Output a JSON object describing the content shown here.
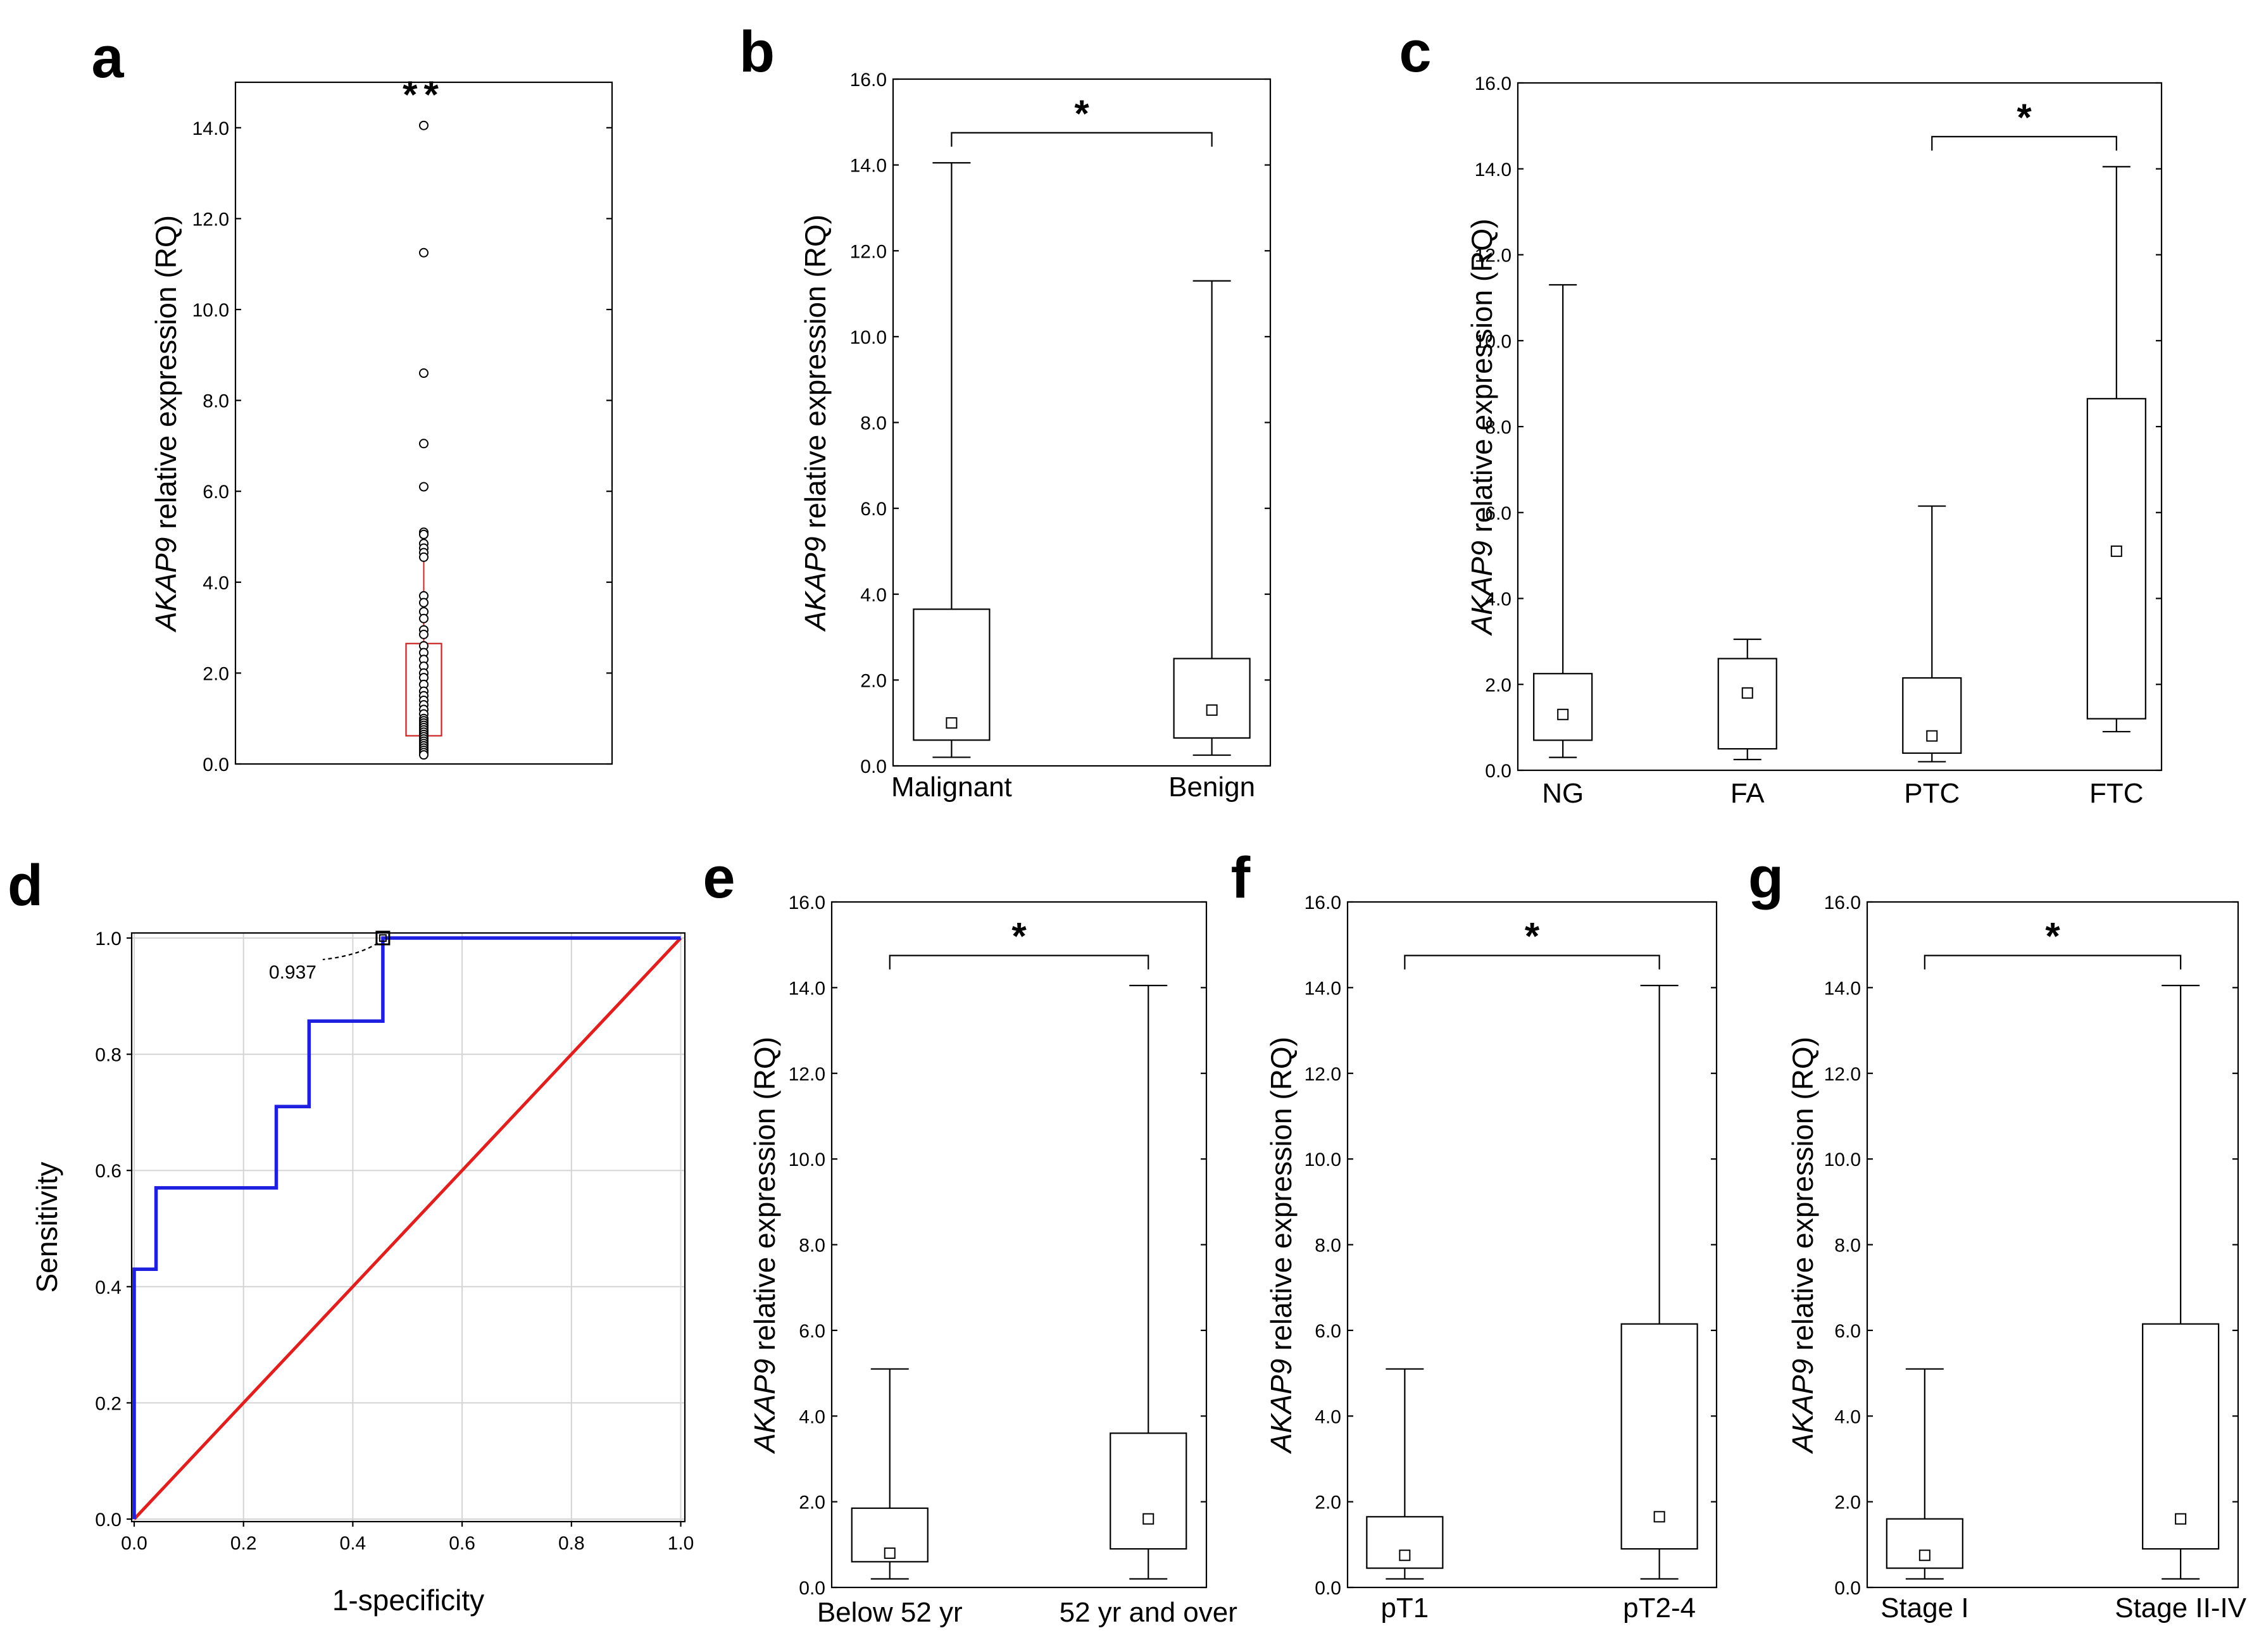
{
  "panels": {
    "a": {
      "letter": "a",
      "type": "dot-box",
      "ylabel_italic": "AKAP9",
      "ylabel_rest": " relative expression (RQ)",
      "yticks": [
        "0.0",
        "2.0",
        "4.0",
        "6.0",
        "8.0",
        "10.0",
        "12.0",
        "14.0"
      ],
      "ylim": [
        0,
        15
      ],
      "significance": "**",
      "box": {
        "q1": 0.62,
        "q3": 2.65,
        "whisker_low": 0.2,
        "whisker_high": 5.1,
        "color": "#cc2222"
      },
      "points": [
        14.05,
        11.25,
        8.6,
        7.05,
        6.1,
        5.1,
        5.05,
        4.85,
        4.75,
        4.65,
        4.55,
        3.7,
        3.55,
        3.35,
        3.2,
        2.95,
        2.85,
        2.6,
        2.45,
        2.3,
        2.15,
        2.0,
        1.9,
        1.75,
        1.6,
        1.5,
        1.4,
        1.3,
        1.2,
        1.1,
        1.0,
        0.95,
        0.9,
        0.85,
        0.8,
        0.75,
        0.7,
        0.65,
        0.6,
        0.55,
        0.5,
        0.45,
        0.4,
        0.35,
        0.3,
        0.25,
        0.2
      ]
    },
    "b": {
      "letter": "b",
      "type": "box",
      "ylabel_italic": "AKAP9",
      "ylabel_rest": " relative expression (RQ)",
      "yticks": [
        "0.0",
        "2.0",
        "4.0",
        "6.0",
        "8.0",
        "10.0",
        "12.0",
        "14.0",
        "16.0"
      ],
      "ylim": [
        0,
        16
      ],
      "significance": "*",
      "categories": [
        "Malignant",
        "Benign"
      ],
      "boxes": [
        {
          "min": 0.2,
          "q1": 0.6,
          "median": 1.0,
          "q3": 3.65,
          "max": 14.05
        },
        {
          "min": 0.25,
          "q1": 0.65,
          "median": 1.3,
          "q3": 2.5,
          "max": 11.3
        }
      ]
    },
    "c": {
      "letter": "c",
      "type": "box",
      "ylabel_italic": "AKAP9",
      "ylabel_rest": " relative expression (RQ)",
      "yticks": [
        "0.0",
        "2.0",
        "4.0",
        "6.0",
        "8.0",
        "10.0",
        "12.0",
        "14.0",
        "16.0"
      ],
      "ylim": [
        0,
        16
      ],
      "significance": "*",
      "categories": [
        "NG",
        "FA",
        "PTC",
        "FTC"
      ],
      "boxes": [
        {
          "min": 0.3,
          "q1": 0.7,
          "median": 1.3,
          "q3": 2.25,
          "max": 11.3
        },
        {
          "min": 0.25,
          "q1": 0.5,
          "median": 1.8,
          "q3": 2.6,
          "max": 3.05
        },
        {
          "min": 0.2,
          "q1": 0.4,
          "median": 0.8,
          "q3": 2.15,
          "max": 6.15
        },
        {
          "min": 0.9,
          "q1": 1.2,
          "median": 5.1,
          "q3": 8.65,
          "max": 14.05
        }
      ]
    },
    "d": {
      "letter": "d",
      "type": "roc",
      "xlabel": "1-specificity",
      "ylabel": "Sensitivity",
      "xticks": [
        "0.0",
        "0.2",
        "0.4",
        "0.6",
        "0.8",
        "1.0"
      ],
      "yticks": [
        "0.0",
        "0.2",
        "0.4",
        "0.6",
        "0.8",
        "1.0"
      ],
      "annotation": "0.937",
      "roc_color": "#1f1fe0",
      "diag_color": "#e01f1f",
      "roc_points": [
        [
          0,
          0
        ],
        [
          0,
          0.43
        ],
        [
          0.04,
          0.43
        ],
        [
          0.04,
          0.57
        ],
        [
          0.26,
          0.57
        ],
        [
          0.26,
          0.71
        ],
        [
          0.32,
          0.71
        ],
        [
          0.32,
          0.857
        ],
        [
          0.455,
          0.857
        ],
        [
          0.455,
          1.0
        ],
        [
          1.0,
          1.0
        ]
      ],
      "cutoff_point": [
        0.455,
        1.0
      ]
    },
    "e": {
      "letter": "e",
      "type": "box",
      "ylabel_italic": "AKAP9",
      "ylabel_rest": " relative expression (RQ)",
      "yticks": [
        "0.0",
        "2.0",
        "4.0",
        "6.0",
        "8.0",
        "10.0",
        "12.0",
        "14.0",
        "16.0"
      ],
      "ylim": [
        0,
        16
      ],
      "significance": "*",
      "categories": [
        "Below 52 yr",
        "52 yr and over"
      ],
      "boxes": [
        {
          "min": 0.2,
          "q1": 0.6,
          "median": 0.8,
          "q3": 1.85,
          "max": 5.1
        },
        {
          "min": 0.2,
          "q1": 0.9,
          "median": 1.6,
          "q3": 3.6,
          "max": 14.05
        }
      ]
    },
    "f": {
      "letter": "f",
      "type": "box",
      "ylabel_italic": "AKAP9",
      "ylabel_rest": " relative expression (RQ)",
      "yticks": [
        "0.0",
        "2.0",
        "4.0",
        "6.0",
        "8.0",
        "10.0",
        "12.0",
        "14.0",
        "16.0"
      ],
      "ylim": [
        0,
        16
      ],
      "significance": "*",
      "categories": [
        "pT1",
        "pT2-4"
      ],
      "boxes": [
        {
          "min": 0.2,
          "q1": 0.45,
          "median": 0.75,
          "q3": 1.65,
          "max": 5.1
        },
        {
          "min": 0.2,
          "q1": 0.9,
          "median": 1.65,
          "q3": 6.15,
          "max": 14.05
        }
      ]
    },
    "g": {
      "letter": "g",
      "type": "box",
      "ylabel_italic": "AKAP9",
      "ylabel_rest": " relative expression (RQ)",
      "yticks": [
        "0.0",
        "2.0",
        "4.0",
        "6.0",
        "8.0",
        "10.0",
        "12.0",
        "14.0",
        "16.0"
      ],
      "ylim": [
        0,
        16
      ],
      "significance": "*",
      "categories": [
        "Stage I",
        "Stage II-IV"
      ],
      "boxes": [
        {
          "min": 0.2,
          "q1": 0.45,
          "median": 0.75,
          "q3": 1.6,
          "max": 5.1
        },
        {
          "min": 0.2,
          "q1": 0.9,
          "median": 1.6,
          "q3": 6.15,
          "max": 14.05
        }
      ]
    }
  },
  "chart_data": [
    {
      "panel": "a",
      "type": "scatter",
      "ylabel": "AKAP9 relative expression (RQ)",
      "ylim": [
        0,
        15
      ],
      "yticks": [
        "0.0",
        "2.0",
        "4.0",
        "6.0",
        "8.0",
        "10.0",
        "12.0",
        "14.0"
      ],
      "significance": "**",
      "values": [
        14.05,
        11.25,
        8.6,
        7.05,
        6.1,
        5.1,
        5.05,
        4.85,
        4.75,
        4.65,
        4.55,
        3.7,
        3.55,
        3.35,
        3.2,
        2.95,
        2.85,
        2.6,
        2.45,
        2.3,
        2.15,
        2.0,
        1.9,
        1.75,
        1.6,
        1.5,
        1.4,
        1.3,
        1.2,
        1.1,
        1.0,
        0.95,
        0.9,
        0.85,
        0.8,
        0.75,
        0.7,
        0.65,
        0.6,
        0.55,
        0.5,
        0.45,
        0.4,
        0.35,
        0.3,
        0.25,
        0.2
      ]
    },
    {
      "panel": "b",
      "type": "box",
      "ylabel": "AKAP9 relative expression (RQ)",
      "ylim": [
        0,
        16
      ],
      "categories": [
        "Malignant",
        "Benign"
      ],
      "series": [
        {
          "values": [
            [
              0.2,
              0.6,
              1.0,
              3.65,
              14.05
            ],
            [
              0.25,
              0.65,
              1.3,
              2.5,
              11.3
            ]
          ]
        }
      ],
      "significance": "*"
    },
    {
      "panel": "c",
      "type": "box",
      "ylabel": "AKAP9 relative expression (RQ)",
      "ylim": [
        0,
        16
      ],
      "categories": [
        "NG",
        "FA",
        "PTC",
        "FTC"
      ],
      "series": [
        {
          "values": [
            [
              0.3,
              0.7,
              1.3,
              2.25,
              11.3
            ],
            [
              0.25,
              0.5,
              1.8,
              2.6,
              3.05
            ],
            [
              0.2,
              0.4,
              0.8,
              2.15,
              6.15
            ],
            [
              0.9,
              1.2,
              5.1,
              8.65,
              14.05
            ]
          ]
        }
      ],
      "significance": "*"
    },
    {
      "panel": "d",
      "type": "line",
      "xlabel": "1-specificity",
      "ylabel": "Sensitivity",
      "xlim": [
        0,
        1
      ],
      "ylim": [
        0,
        1
      ],
      "series": [
        {
          "x": [
            0,
            0,
            0.04,
            0.04,
            0.26,
            0.26,
            0.32,
            0.32,
            0.455,
            0.455,
            1.0
          ],
          "y": [
            0,
            0.43,
            0.43,
            0.57,
            0.57,
            0.71,
            0.71,
            0.857,
            0.857,
            1.0,
            1.0
          ]
        },
        {
          "x": [
            0,
            1
          ],
          "y": [
            0,
            1
          ]
        }
      ],
      "annotation": "0.937",
      "grid": true
    },
    {
      "panel": "e",
      "type": "box",
      "ylabel": "AKAP9 relative expression (RQ)",
      "ylim": [
        0,
        16
      ],
      "categories": [
        "Below 52 yr",
        "52 yr and over"
      ],
      "series": [
        {
          "values": [
            [
              0.2,
              0.6,
              0.8,
              1.85,
              5.1
            ],
            [
              0.2,
              0.9,
              1.6,
              3.6,
              14.05
            ]
          ]
        }
      ],
      "significance": "*"
    },
    {
      "panel": "f",
      "type": "box",
      "ylabel": "AKAP9 relative expression (RQ)",
      "ylim": [
        0,
        16
      ],
      "categories": [
        "pT1",
        "pT2-4"
      ],
      "series": [
        {
          "values": [
            [
              0.2,
              0.45,
              0.75,
              1.65,
              5.1
            ],
            [
              0.2,
              0.9,
              1.65,
              6.15,
              14.05
            ]
          ]
        }
      ],
      "significance": "*"
    },
    {
      "panel": "g",
      "type": "box",
      "ylabel": "AKAP9 relative expression (RQ)",
      "ylim": [
        0,
        16
      ],
      "categories": [
        "Stage I",
        "Stage II-IV"
      ],
      "series": [
        {
          "values": [
            [
              0.2,
              0.45,
              0.75,
              1.6,
              5.1
            ],
            [
              0.2,
              0.9,
              1.6,
              6.15,
              14.05
            ]
          ]
        }
      ],
      "significance": "*"
    }
  ]
}
